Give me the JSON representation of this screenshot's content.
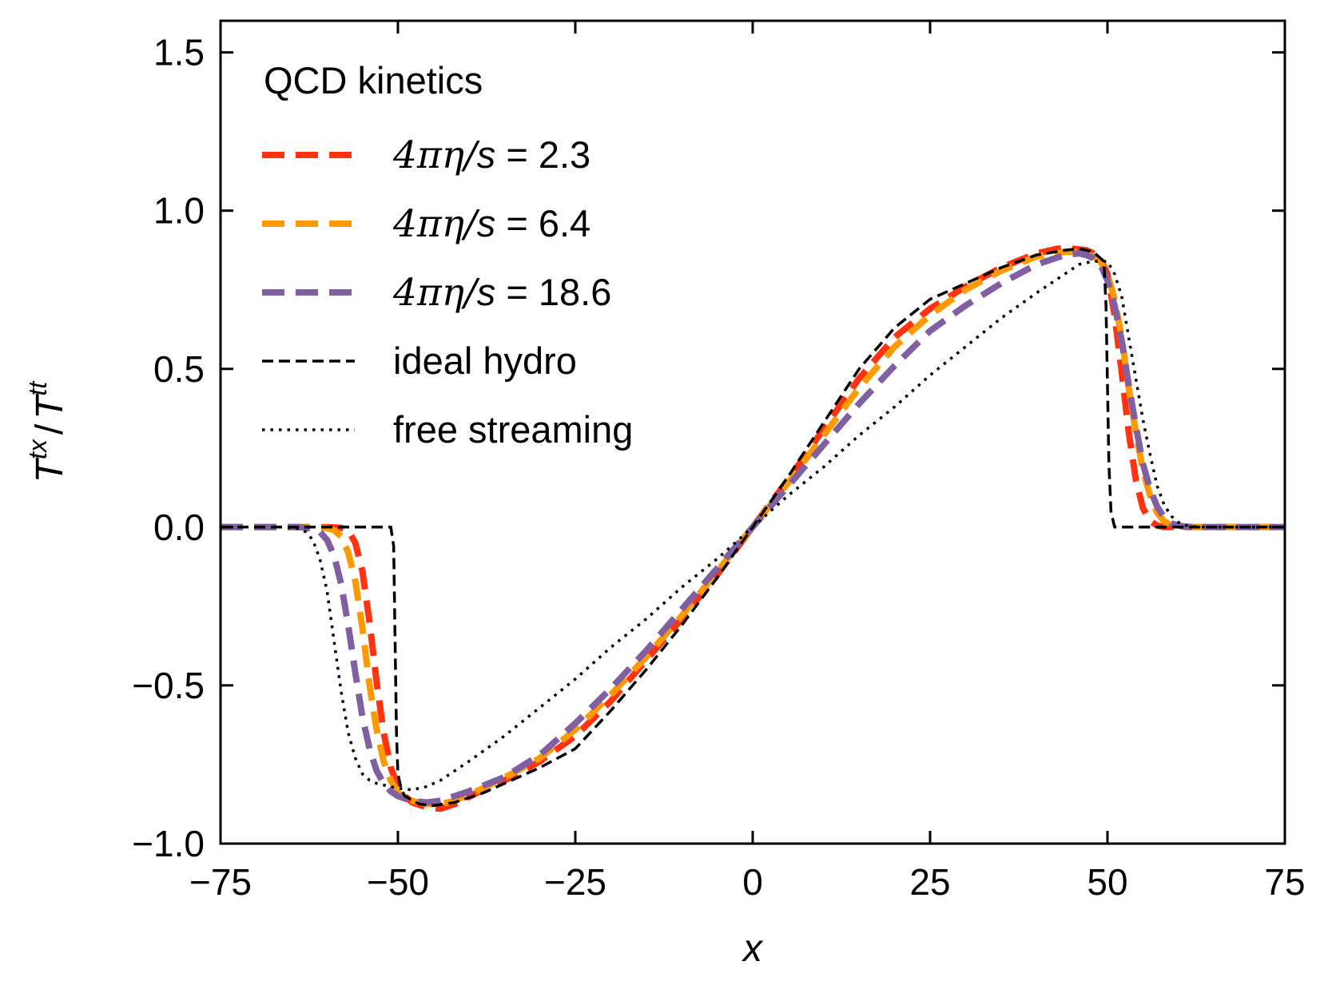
{
  "chart_data": {
    "type": "line",
    "xlabel": "x",
    "ylabel": "T^tx / T^tt",
    "ylabel_parts": {
      "num": "T",
      "num_sup": "tx",
      "sep": "/",
      "den": "T",
      "den_sup": "tt"
    },
    "xlim": [
      -75,
      75
    ],
    "ylim": [
      -1.0,
      1.6
    ],
    "xticks": [
      -75,
      -50,
      -25,
      0,
      25,
      50,
      75
    ],
    "xtick_labels": [
      "−75",
      "−50",
      "−25",
      "0",
      "25",
      "50",
      "75"
    ],
    "yticks": [
      -1.0,
      -0.5,
      0.0,
      0.5,
      1.0,
      1.5
    ],
    "ytick_labels": [
      "−1.0",
      "−0.5",
      "0.0",
      "0.5",
      "1.0",
      "1.5"
    ],
    "grid": false,
    "legend": {
      "title": "QCD kinetics",
      "placement": "top-left"
    },
    "series": [
      {
        "name": "4πη/s = 2.3",
        "label_parts": {
          "math": "4πη/",
          "var": "s",
          "rest": " = 2.3"
        },
        "color": "#ff3311",
        "style": "dashed-thick",
        "x": [
          -75,
          -60,
          -58,
          -57,
          -56,
          -55,
          -54,
          -53,
          -52,
          -51,
          -50,
          -49,
          -48,
          -46,
          -44,
          -42,
          -38,
          -34,
          -30,
          -25,
          -20,
          -15,
          -10,
          -5,
          0,
          5,
          10,
          15,
          20,
          25,
          30,
          35,
          40,
          43,
          45,
          47,
          48,
          49,
          50,
          51,
          52,
          53,
          54,
          55,
          56,
          57,
          58,
          60,
          65,
          75
        ],
        "y": [
          0,
          0,
          -0.002,
          -0.01,
          -0.05,
          -0.14,
          -0.3,
          -0.49,
          -0.65,
          -0.76,
          -0.82,
          -0.85,
          -0.87,
          -0.885,
          -0.89,
          -0.875,
          -0.83,
          -0.79,
          -0.74,
          -0.66,
          -0.55,
          -0.42,
          -0.29,
          -0.15,
          0.0,
          0.15,
          0.31,
          0.47,
          0.6,
          0.69,
          0.76,
          0.82,
          0.865,
          0.88,
          0.88,
          0.875,
          0.865,
          0.85,
          0.8,
          0.67,
          0.49,
          0.3,
          0.15,
          0.06,
          0.02,
          0.005,
          0.0,
          0,
          0,
          0
        ]
      },
      {
        "name": "4πη/s = 6.4",
        "label_parts": {
          "math": "4πη/",
          "var": "s",
          "rest": " = 6.4"
        },
        "color": "#ff9900",
        "style": "dashed-thick",
        "x": [
          -75,
          -62,
          -60,
          -59,
          -58,
          -57,
          -56,
          -55,
          -54,
          -53,
          -52,
          -51,
          -50,
          -48,
          -46,
          -44,
          -42,
          -38,
          -34,
          -30,
          -25,
          -20,
          -15,
          -10,
          -5,
          0,
          5,
          10,
          15,
          20,
          25,
          30,
          35,
          40,
          44,
          46,
          47,
          48,
          49,
          50,
          51,
          52,
          53,
          54,
          55,
          56,
          57,
          58,
          59,
          60,
          62,
          65,
          75
        ],
        "y": [
          0,
          0,
          -0.003,
          -0.01,
          -0.03,
          -0.08,
          -0.17,
          -0.32,
          -0.5,
          -0.64,
          -0.74,
          -0.8,
          -0.84,
          -0.865,
          -0.875,
          -0.875,
          -0.865,
          -0.825,
          -0.78,
          -0.73,
          -0.64,
          -0.53,
          -0.41,
          -0.28,
          -0.14,
          0.0,
          0.14,
          0.29,
          0.44,
          0.57,
          0.67,
          0.75,
          0.81,
          0.855,
          0.87,
          0.87,
          0.865,
          0.855,
          0.84,
          0.8,
          0.72,
          0.6,
          0.44,
          0.3,
          0.18,
          0.1,
          0.045,
          0.018,
          0.006,
          0.002,
          0.0,
          0,
          0
        ]
      },
      {
        "name": "4πη/s = 18.6",
        "label_parts": {
          "math": "4πη/",
          "var": "s",
          "rest": " = 18.6"
        },
        "color": "#8060a0",
        "style": "dashed-thick",
        "x": [
          -75,
          -64,
          -62,
          -61,
          -60,
          -59,
          -58,
          -57,
          -56,
          -55,
          -54,
          -53,
          -52,
          -51,
          -50,
          -48,
          -46,
          -44,
          -40,
          -35,
          -30,
          -25,
          -20,
          -15,
          -10,
          -5,
          0,
          5,
          10,
          15,
          20,
          25,
          30,
          35,
          40,
          44,
          46,
          47,
          48,
          49,
          50,
          51,
          52,
          53,
          54,
          55,
          56,
          57,
          58,
          59,
          60,
          61,
          62,
          64,
          75
        ],
        "y": [
          0,
          0,
          -0.005,
          -0.015,
          -0.04,
          -0.09,
          -0.18,
          -0.31,
          -0.46,
          -0.6,
          -0.7,
          -0.77,
          -0.81,
          -0.835,
          -0.85,
          -0.865,
          -0.87,
          -0.865,
          -0.835,
          -0.79,
          -0.72,
          -0.62,
          -0.51,
          -0.39,
          -0.26,
          -0.13,
          0.0,
          0.13,
          0.26,
          0.39,
          0.51,
          0.62,
          0.7,
          0.77,
          0.83,
          0.86,
          0.865,
          0.86,
          0.85,
          0.83,
          0.78,
          0.7,
          0.59,
          0.45,
          0.32,
          0.2,
          0.12,
          0.065,
          0.03,
          0.012,
          0.005,
          0.002,
          0.0,
          0,
          0
        ]
      },
      {
        "name": "ideal hydro",
        "color": "#000000",
        "style": "dashed-thin",
        "x": [
          -75,
          -51,
          -50.6,
          -50.4,
          -50.2,
          -50,
          -49.5,
          -49,
          -47,
          -45,
          -42,
          -38,
          -34,
          -30,
          -25,
          -20,
          -15,
          -10,
          -5,
          0,
          5,
          10,
          15,
          20,
          25,
          30,
          35,
          40,
          44,
          46,
          48,
          49.5,
          49.8,
          50,
          50.2,
          50.5,
          51,
          75
        ],
        "y": [
          0,
          0,
          -0.06,
          -0.35,
          -0.65,
          -0.78,
          -0.83,
          -0.85,
          -0.875,
          -0.88,
          -0.87,
          -0.84,
          -0.8,
          -0.76,
          -0.7,
          -0.58,
          -0.45,
          -0.31,
          -0.16,
          0.0,
          0.16,
          0.33,
          0.5,
          0.63,
          0.72,
          0.77,
          0.82,
          0.86,
          0.875,
          0.88,
          0.87,
          0.84,
          0.7,
          0.45,
          0.2,
          0.05,
          0,
          0
        ]
      },
      {
        "name": "free streaming",
        "color": "#000000",
        "style": "dotted",
        "x": [
          -75,
          -66,
          -64,
          -63,
          -62,
          -61,
          -60,
          -59,
          -58,
          -57,
          -56,
          -55,
          -54,
          -53,
          -52,
          -51,
          -50,
          -48,
          -46,
          -44,
          -40,
          -35,
          -30,
          -25,
          -20,
          -15,
          -10,
          -5,
          0,
          5,
          10,
          15,
          20,
          25,
          30,
          35,
          40,
          44,
          46,
          48,
          50,
          51,
          52,
          53,
          54,
          55,
          56,
          57,
          58,
          59,
          60,
          61,
          62,
          64,
          66,
          75
        ],
        "y": [
          0,
          0,
          -0.005,
          -0.015,
          -0.04,
          -0.1,
          -0.2,
          -0.36,
          -0.52,
          -0.65,
          -0.73,
          -0.78,
          -0.8,
          -0.81,
          -0.815,
          -0.82,
          -0.825,
          -0.83,
          -0.82,
          -0.8,
          -0.74,
          -0.66,
          -0.57,
          -0.48,
          -0.38,
          -0.29,
          -0.19,
          -0.1,
          0.0,
          0.1,
          0.19,
          0.29,
          0.38,
          0.48,
          0.57,
          0.66,
          0.74,
          0.8,
          0.83,
          0.84,
          0.84,
          0.8,
          0.73,
          0.6,
          0.47,
          0.34,
          0.23,
          0.13,
          0.07,
          0.035,
          0.015,
          0.006,
          0.002,
          0.0,
          0,
          0
        ]
      }
    ]
  }
}
